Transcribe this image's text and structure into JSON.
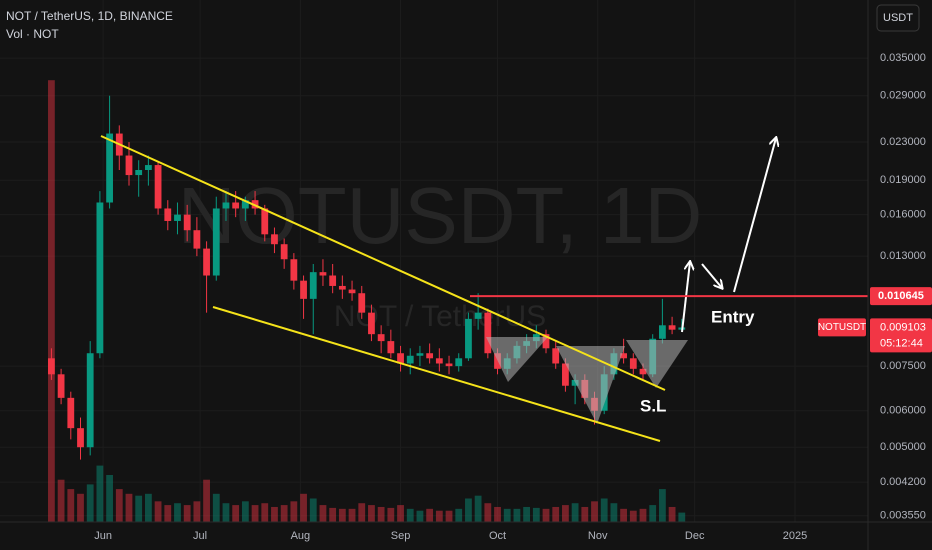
{
  "header": {
    "symbol": "NOT / TetherUS, 1D, BINANCE",
    "volume_label": "Vol · NOT"
  },
  "currency_button": "USDT",
  "watermark": {
    "title": "NOTUSDT, 1D",
    "subtitle": "NOT / TetherUS"
  },
  "chart_data": {
    "type": "candlestick",
    "open": [
      0.0078,
      0.0072,
      0.0064,
      0.0055,
      0.005,
      0.008,
      0.017,
      0.024,
      0.0215,
      0.0195,
      0.02,
      0.0205,
      0.0165,
      0.0155,
      0.016,
      0.0148,
      0.0135,
      0.0118,
      0.0165,
      0.017,
      0.0165,
      0.0172,
      0.0165,
      0.0145,
      0.0138,
      0.0128,
      0.0115,
      0.0105,
      0.012,
      0.0118,
      0.0112,
      0.011,
      0.0108,
      0.0098,
      0.0088,
      0.0085,
      0.008,
      0.0076,
      0.0079,
      0.008,
      0.0078,
      0.0076,
      0.0075,
      0.0078,
      0.0095,
      0.0098,
      0.008,
      0.0074,
      0.0078,
      0.0083,
      0.0085,
      0.0088,
      0.0082,
      0.0076,
      0.0068,
      0.007,
      0.0064,
      0.006,
      0.0072,
      0.008,
      0.0078,
      0.0074,
      0.0072,
      0.0086,
      0.0092,
      0.009
    ],
    "high": [
      0.0082,
      0.0074,
      0.0066,
      0.0058,
      0.0085,
      0.018,
      0.029,
      0.025,
      0.023,
      0.021,
      0.0215,
      0.0208,
      0.0172,
      0.017,
      0.0168,
      0.0158,
      0.014,
      0.0175,
      0.018,
      0.018,
      0.0175,
      0.018,
      0.0168,
      0.015,
      0.0142,
      0.0132,
      0.0118,
      0.0125,
      0.0128,
      0.0125,
      0.0118,
      0.0115,
      0.0112,
      0.0102,
      0.0092,
      0.009,
      0.0083,
      0.0082,
      0.0083,
      0.0084,
      0.0082,
      0.0079,
      0.008,
      0.0098,
      0.0108,
      0.01,
      0.0082,
      0.008,
      0.0085,
      0.0088,
      0.0092,
      0.009,
      0.0085,
      0.0078,
      0.0072,
      0.0072,
      0.0066,
      0.0075,
      0.0082,
      0.0086,
      0.008,
      0.0076,
      0.0088,
      0.0105,
      0.0096,
      0.0095
    ],
    "low": [
      0.007,
      0.0062,
      0.0052,
      0.0047,
      0.0048,
      0.0078,
      0.0165,
      0.02,
      0.0185,
      0.0175,
      0.0185,
      0.016,
      0.0148,
      0.0145,
      0.014,
      0.013,
      0.0098,
      0.0115,
      0.0155,
      0.0158,
      0.0155,
      0.016,
      0.014,
      0.0132,
      0.0122,
      0.011,
      0.0095,
      0.0088,
      0.0112,
      0.0108,
      0.0105,
      0.0104,
      0.0095,
      0.0085,
      0.008,
      0.0078,
      0.0073,
      0.0072,
      0.0075,
      0.0076,
      0.0073,
      0.0072,
      0.0073,
      0.0077,
      0.009,
      0.0078,
      0.0072,
      0.0072,
      0.0076,
      0.008,
      0.0082,
      0.008,
      0.0074,
      0.0066,
      0.0062,
      0.0062,
      0.0056,
      0.0059,
      0.007,
      0.0076,
      0.0072,
      0.007,
      0.0071,
      0.0084,
      0.0088,
      0.0089
    ],
    "close": [
      0.0072,
      0.0064,
      0.0055,
      0.005,
      0.008,
      0.017,
      0.024,
      0.0215,
      0.0195,
      0.02,
      0.0205,
      0.0165,
      0.0155,
      0.016,
      0.0148,
      0.0135,
      0.0118,
      0.0165,
      0.017,
      0.0165,
      0.0172,
      0.0165,
      0.0145,
      0.0138,
      0.0128,
      0.0115,
      0.0105,
      0.012,
      0.0118,
      0.0112,
      0.011,
      0.0108,
      0.0098,
      0.0088,
      0.0085,
      0.008,
      0.0076,
      0.0079,
      0.008,
      0.0078,
      0.0076,
      0.0075,
      0.0078,
      0.0095,
      0.0098,
      0.008,
      0.0074,
      0.0078,
      0.0083,
      0.0085,
      0.0088,
      0.0082,
      0.0076,
      0.0068,
      0.007,
      0.0064,
      0.006,
      0.0072,
      0.008,
      0.0078,
      0.0074,
      0.0072,
      0.0086,
      0.0092,
      0.009,
      0.0091
    ],
    "volume": [
      470,
      45,
      35,
      30,
      40,
      60,
      50,
      35,
      30,
      28,
      30,
      22,
      18,
      20,
      18,
      22,
      45,
      30,
      20,
      18,
      22,
      18,
      20,
      16,
      18,
      22,
      30,
      25,
      18,
      15,
      14,
      14,
      20,
      18,
      16,
      15,
      18,
      14,
      12,
      14,
      12,
      12,
      14,
      25,
      28,
      20,
      16,
      14,
      14,
      16,
      15,
      14,
      16,
      18,
      20,
      16,
      22,
      25,
      20,
      14,
      12,
      14,
      18,
      35,
      16,
      10
    ],
    "volume_lim": [
      0,
      500
    ],
    "up_color": "#089981",
    "down_color": "#f23645",
    "xlim": [
      -5.3,
      84.2
    ],
    "xticks": [
      {
        "value": 5.33,
        "label": "Jun"
      },
      {
        "value": 15.33,
        "label": "Jul"
      },
      {
        "value": 25.67,
        "label": "Aug"
      },
      {
        "value": 36,
        "label": "Sep"
      },
      {
        "value": 46,
        "label": "Oct"
      },
      {
        "value": 56.33,
        "label": "Nov"
      },
      {
        "value": 66.33,
        "label": "Dec"
      },
      {
        "value": 76.67,
        "label": "2025"
      }
    ],
    "ylim": [
      0.00344,
      0.0468
    ],
    "log_scale": true,
    "grid": true,
    "yticks": [
      {
        "value": 0.035,
        "label": "0.035000"
      },
      {
        "value": 0.029,
        "label": "0.029000"
      },
      {
        "value": 0.023,
        "label": "0.023000"
      },
      {
        "value": 0.019,
        "label": "0.019000"
      },
      {
        "value": 0.016,
        "label": "0.016000"
      },
      {
        "value": 0.013,
        "label": "0.013000"
      },
      {
        "value": 0.0075,
        "label": "0.007500"
      },
      {
        "value": 0.006,
        "label": "0.006000"
      },
      {
        "value": 0.005,
        "label": "0.005000"
      },
      {
        "value": 0.0042,
        "label": "0.004200"
      },
      {
        "value": 0.00355,
        "label": "0.003550"
      }
    ],
    "entry": {
      "value": 0.010645,
      "label": "0.010645",
      "text": "Entry",
      "color": "#f23645"
    },
    "stop_loss_text": "S.L",
    "last_price": {
      "symbol": "NOTUSDT",
      "value": 0.009103,
      "label": "0.009103",
      "countdown": "05:12:44"
    }
  }
}
